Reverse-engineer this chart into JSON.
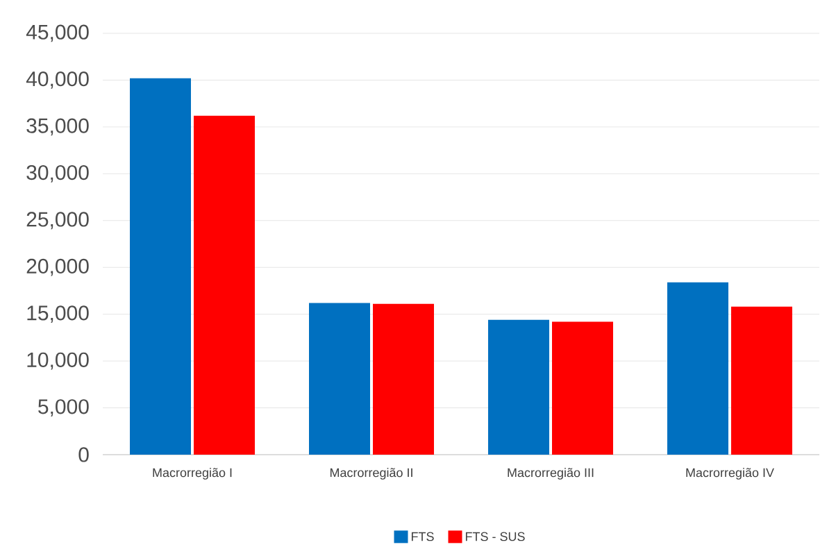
{
  "chart_data": {
    "type": "bar",
    "categories": [
      "Macrorregião I",
      "Macrorregião II",
      "Macrorregião III",
      "Macrorregião IV"
    ],
    "series": [
      {
        "name": "FTS",
        "color": "#0070c0",
        "values": [
          40200,
          16200,
          14400,
          18400
        ]
      },
      {
        "name": "FTS - SUS",
        "color": "#ff0000",
        "values": [
          36200,
          16100,
          14200,
          15800
        ]
      }
    ],
    "ylim": [
      0,
      45000
    ],
    "yticks": [
      0,
      {
        "value": 5000,
        "label": "5,000"
      },
      {
        "value": 10000,
        "label": "10,000"
      },
      {
        "value": 15000,
        "label": "15,000"
      },
      {
        "value": 20000,
        "label": "20,000"
      },
      {
        "value": 25000,
        "label": "25,000"
      },
      {
        "value": 30000,
        "label": "30,000"
      },
      {
        "value": 35000,
        "label": "35,000"
      },
      {
        "value": 40000,
        "label": "40,000"
      },
      {
        "value": 45000,
        "label": "45,000"
      }
    ],
    "grid": "y",
    "legend": "bottom"
  }
}
